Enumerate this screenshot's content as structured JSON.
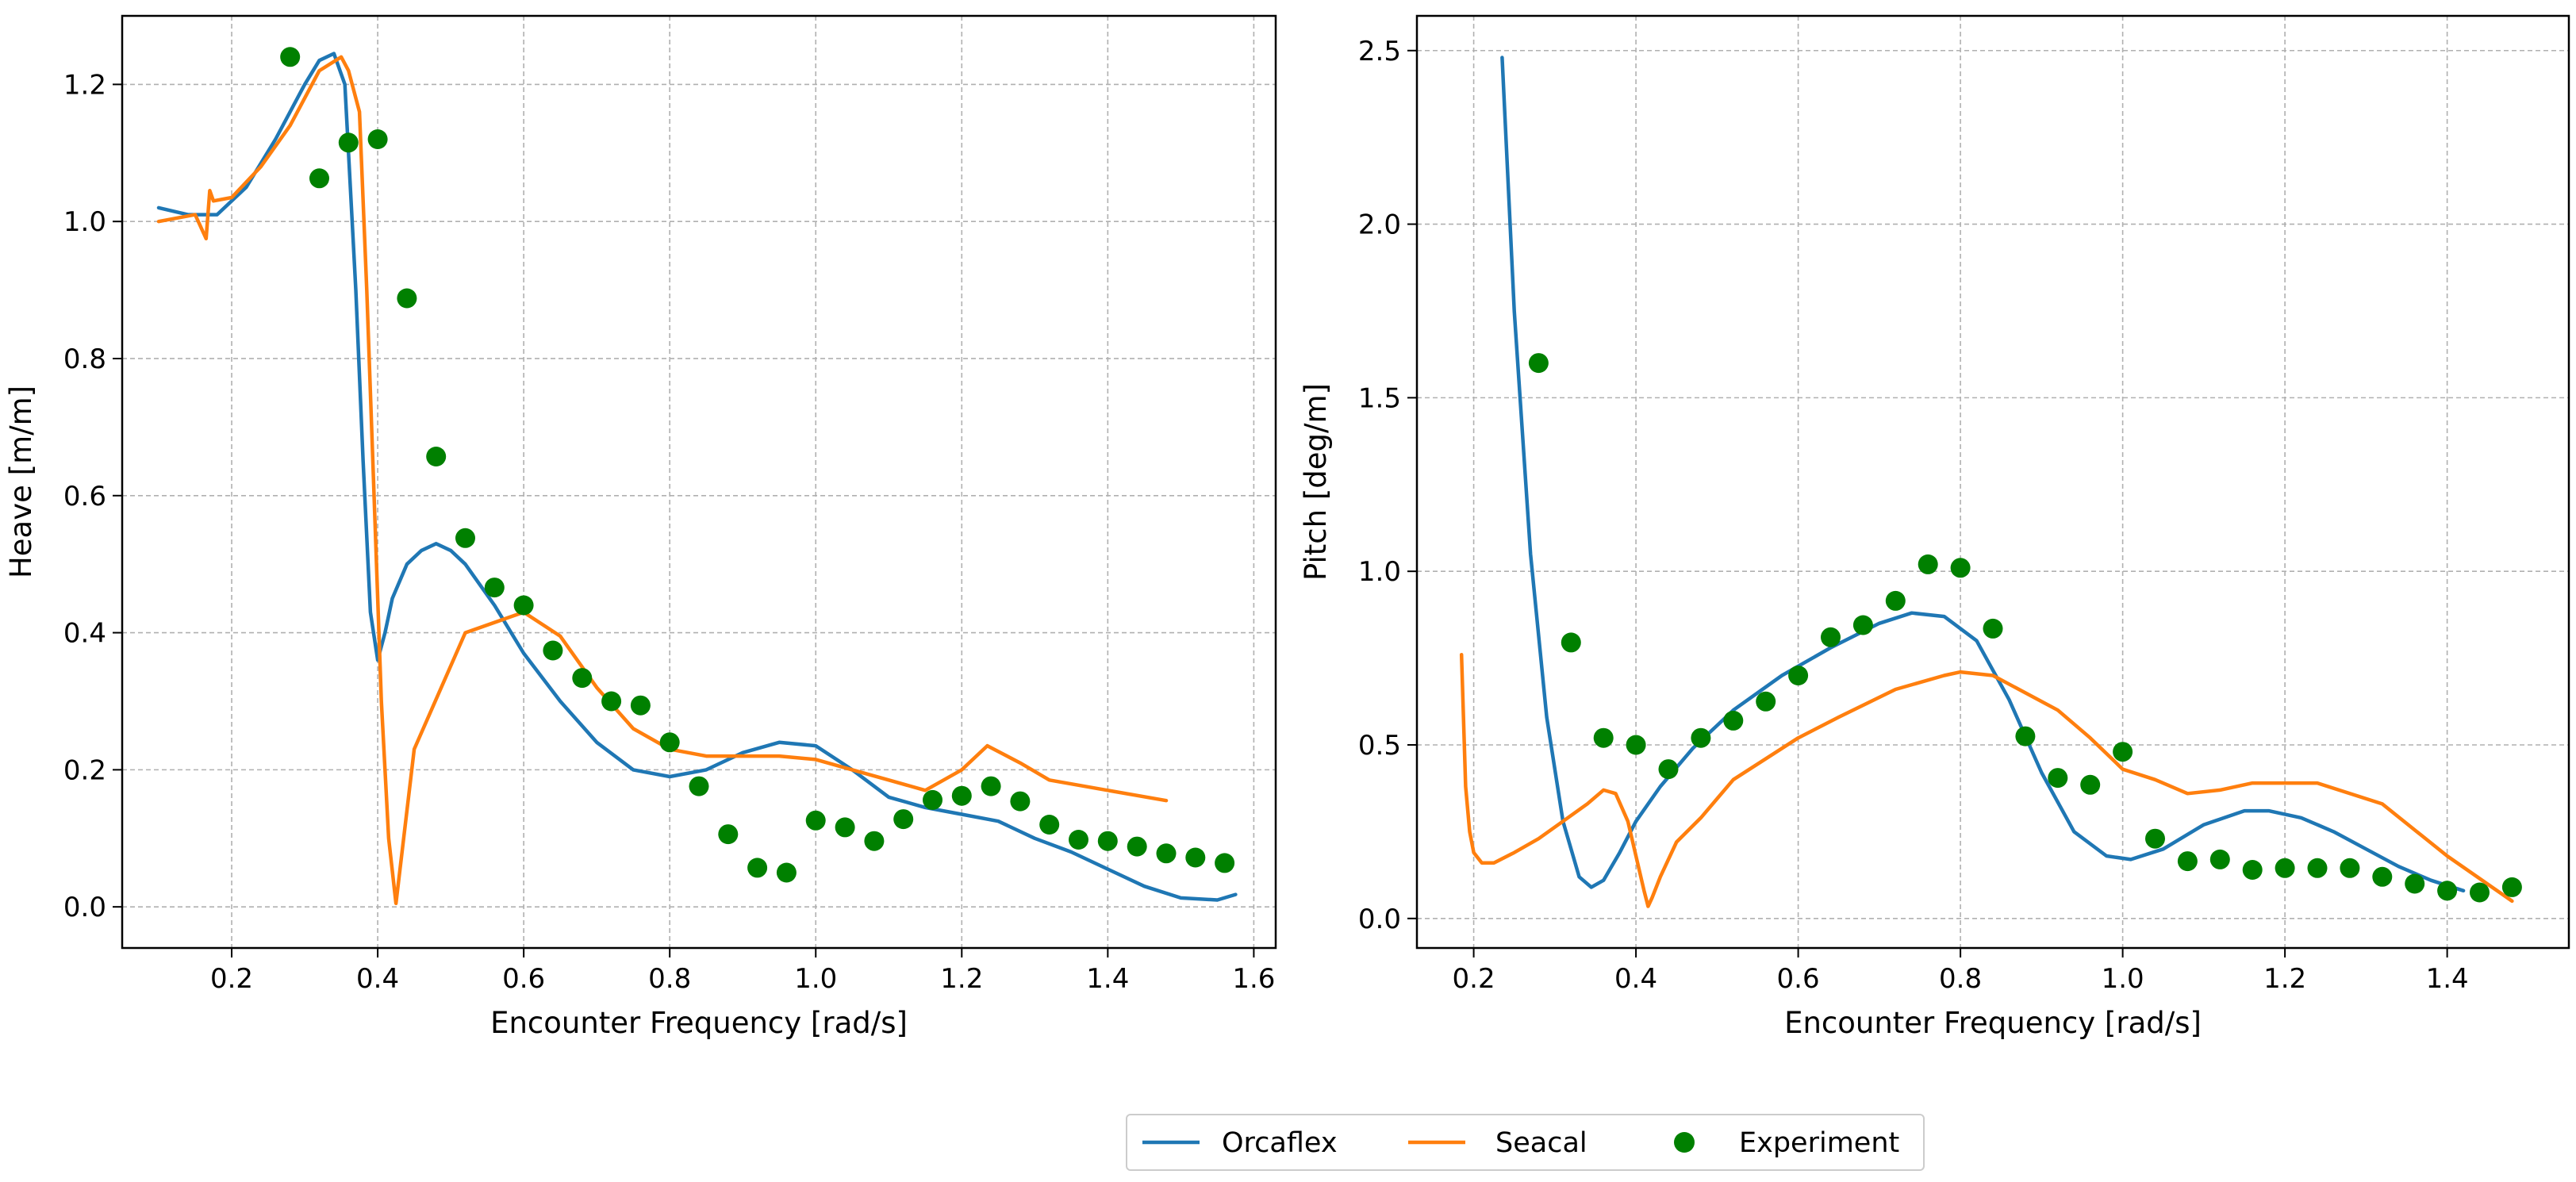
{
  "chart_data": [
    {
      "type": "line",
      "xlabel": "Encounter Frequency [rad/s]",
      "ylabel": "Heave [m/m]",
      "xlim": [
        0.05,
        1.63
      ],
      "ylim": [
        -0.06,
        1.3
      ],
      "grid": true,
      "xticks": [
        0.2,
        0.4,
        0.6,
        0.8,
        1.0,
        1.2,
        1.4,
        1.6
      ],
      "xtick_labels": [
        "0.2",
        "0.4",
        "0.6",
        "0.8",
        "1.0",
        "1.2",
        "1.4",
        "1.6"
      ],
      "yticks": [
        0.0,
        0.2,
        0.4,
        0.6,
        0.8,
        1.0,
        1.2
      ],
      "ytick_labels": [
        "0.0",
        "0.2",
        "0.4",
        "0.6",
        "0.8",
        "1.0",
        "1.2"
      ],
      "series": [
        {
          "name": "Orcaflex",
          "kind": "line",
          "color": "#1f77b4",
          "x": [
            0.1,
            0.14,
            0.18,
            0.22,
            0.26,
            0.3,
            0.32,
            0.34,
            0.355,
            0.37,
            0.38,
            0.39,
            0.4,
            0.41,
            0.42,
            0.44,
            0.46,
            0.48,
            0.5,
            0.52,
            0.56,
            0.6,
            0.65,
            0.7,
            0.75,
            0.8,
            0.85,
            0.9,
            0.95,
            1.0,
            1.05,
            1.1,
            1.15,
            1.2,
            1.25,
            1.3,
            1.35,
            1.4,
            1.45,
            1.5,
            1.55,
            1.575
          ],
          "y": [
            1.02,
            1.01,
            1.01,
            1.05,
            1.12,
            1.2,
            1.235,
            1.245,
            1.2,
            0.9,
            0.65,
            0.43,
            0.36,
            0.4,
            0.45,
            0.5,
            0.52,
            0.53,
            0.52,
            0.5,
            0.44,
            0.37,
            0.3,
            0.24,
            0.2,
            0.19,
            0.2,
            0.225,
            0.24,
            0.235,
            0.2,
            0.16,
            0.145,
            0.135,
            0.125,
            0.1,
            0.08,
            0.055,
            0.03,
            0.013,
            0.01,
            0.018
          ]
        },
        {
          "name": "Seacal",
          "kind": "line",
          "color": "#ff7f0e",
          "x": [
            0.1,
            0.15,
            0.165,
            0.17,
            0.175,
            0.2,
            0.24,
            0.28,
            0.32,
            0.35,
            0.36,
            0.375,
            0.385,
            0.395,
            0.405,
            0.415,
            0.425,
            0.43,
            0.44,
            0.45,
            0.52,
            0.6,
            0.65,
            0.7,
            0.75,
            0.8,
            0.85,
            0.9,
            0.95,
            1.0,
            1.05,
            1.1,
            1.15,
            1.2,
            1.235,
            1.28,
            1.32,
            1.4,
            1.48
          ],
          "y": [
            1.0,
            1.01,
            0.975,
            1.045,
            1.03,
            1.035,
            1.08,
            1.14,
            1.22,
            1.24,
            1.22,
            1.16,
            0.9,
            0.6,
            0.3,
            0.1,
            0.005,
            0.05,
            0.14,
            0.23,
            0.4,
            0.43,
            0.395,
            0.32,
            0.26,
            0.23,
            0.22,
            0.22,
            0.22,
            0.215,
            0.2,
            0.185,
            0.17,
            0.2,
            0.235,
            0.21,
            0.185,
            0.17,
            0.155
          ]
        },
        {
          "name": "Experiment",
          "kind": "scatter",
          "color": "#008000",
          "x": [
            0.28,
            0.32,
            0.36,
            0.4,
            0.44,
            0.48,
            0.52,
            0.56,
            0.6,
            0.64,
            0.68,
            0.72,
            0.76,
            0.8,
            0.84,
            0.88,
            0.92,
            0.96,
            1.0,
            1.04,
            1.08,
            1.12,
            1.16,
            1.2,
            1.24,
            1.28,
            1.32,
            1.36,
            1.4,
            1.44,
            1.48,
            1.52,
            1.56
          ],
          "y": [
            1.24,
            1.063,
            1.115,
            1.12,
            0.888,
            0.657,
            0.538,
            0.466,
            0.44,
            0.374,
            0.334,
            0.3,
            0.294,
            0.24,
            0.176,
            0.106,
            0.057,
            0.05,
            0.126,
            0.116,
            0.096,
            0.128,
            0.156,
            0.162,
            0.176,
            0.154,
            0.12,
            0.098,
            0.096,
            0.088,
            0.078,
            0.072,
            0.064
          ]
        }
      ]
    },
    {
      "type": "line",
      "xlabel": "Encounter Frequency [rad/s]",
      "ylabel": "Pitch [deg/m]",
      "xlim": [
        0.13,
        1.55
      ],
      "ylim": [
        -0.085,
        2.6
      ],
      "grid": true,
      "xticks": [
        0.2,
        0.4,
        0.6,
        0.8,
        1.0,
        1.2,
        1.4
      ],
      "xtick_labels": [
        "0.2",
        "0.4",
        "0.6",
        "0.8",
        "1.0",
        "1.2",
        "1.4"
      ],
      "yticks": [
        0.0,
        0.5,
        1.0,
        1.5,
        2.0,
        2.5
      ],
      "ytick_labels": [
        "0.0",
        "0.5",
        "1.0",
        "1.5",
        "2.0",
        "2.5"
      ],
      "series": [
        {
          "name": "Orcaflex",
          "kind": "line",
          "color": "#1f77b4",
          "x": [
            0.235,
            0.25,
            0.27,
            0.29,
            0.31,
            0.33,
            0.345,
            0.36,
            0.38,
            0.4,
            0.43,
            0.47,
            0.52,
            0.58,
            0.64,
            0.7,
            0.74,
            0.78,
            0.82,
            0.86,
            0.9,
            0.94,
            0.98,
            1.01,
            1.05,
            1.1,
            1.15,
            1.18,
            1.22,
            1.26,
            1.3,
            1.34,
            1.38,
            1.42
          ],
          "y": [
            2.48,
            1.75,
            1.05,
            0.58,
            0.28,
            0.12,
            0.09,
            0.11,
            0.19,
            0.28,
            0.38,
            0.49,
            0.6,
            0.7,
            0.78,
            0.85,
            0.88,
            0.87,
            0.8,
            0.63,
            0.42,
            0.25,
            0.18,
            0.17,
            0.2,
            0.27,
            0.31,
            0.31,
            0.29,
            0.25,
            0.2,
            0.15,
            0.11,
            0.08
          ]
        },
        {
          "name": "Seacal",
          "kind": "line",
          "color": "#ff7f0e",
          "x": [
            0.185,
            0.19,
            0.195,
            0.2,
            0.21,
            0.225,
            0.25,
            0.28,
            0.31,
            0.34,
            0.36,
            0.375,
            0.39,
            0.4,
            0.41,
            0.415,
            0.42,
            0.43,
            0.45,
            0.48,
            0.52,
            0.6,
            0.65,
            0.72,
            0.78,
            0.8,
            0.84,
            0.92,
            0.96,
            1.0,
            1.04,
            1.08,
            1.12,
            1.16,
            1.2,
            1.24,
            1.32,
            1.4,
            1.48
          ],
          "y": [
            0.76,
            0.38,
            0.25,
            0.19,
            0.16,
            0.16,
            0.19,
            0.23,
            0.28,
            0.33,
            0.37,
            0.36,
            0.28,
            0.18,
            0.08,
            0.035,
            0.06,
            0.12,
            0.22,
            0.29,
            0.4,
            0.52,
            0.58,
            0.66,
            0.7,
            0.71,
            0.7,
            0.6,
            0.52,
            0.43,
            0.4,
            0.36,
            0.37,
            0.39,
            0.39,
            0.39,
            0.33,
            0.18,
            0.05
          ]
        },
        {
          "name": "Experiment",
          "kind": "scatter",
          "color": "#008000",
          "x": [
            0.28,
            0.32,
            0.36,
            0.4,
            0.44,
            0.48,
            0.52,
            0.56,
            0.6,
            0.64,
            0.68,
            0.72,
            0.76,
            0.8,
            0.84,
            0.88,
            0.92,
            0.96,
            1.0,
            1.04,
            1.08,
            1.12,
            1.16,
            1.2,
            1.24,
            1.28,
            1.32,
            1.36,
            1.4,
            1.44,
            1.48
          ],
          "y": [
            1.6,
            0.795,
            0.52,
            0.5,
            0.43,
            0.52,
            0.57,
            0.625,
            0.7,
            0.81,
            0.845,
            0.915,
            1.02,
            1.01,
            0.835,
            0.525,
            0.405,
            0.385,
            0.48,
            0.23,
            0.165,
            0.17,
            0.14,
            0.145,
            0.145,
            0.145,
            0.12,
            0.1,
            0.08,
            0.075,
            0.09
          ]
        }
      ]
    }
  ],
  "legend": {
    "placement": "bottom-center",
    "items": [
      {
        "label": "Orcaflex",
        "kind": "line",
        "color": "#1f77b4"
      },
      {
        "label": "Seacal",
        "kind": "line",
        "color": "#ff7f0e"
      },
      {
        "label": "Experiment",
        "kind": "marker",
        "color": "#008000"
      }
    ]
  }
}
